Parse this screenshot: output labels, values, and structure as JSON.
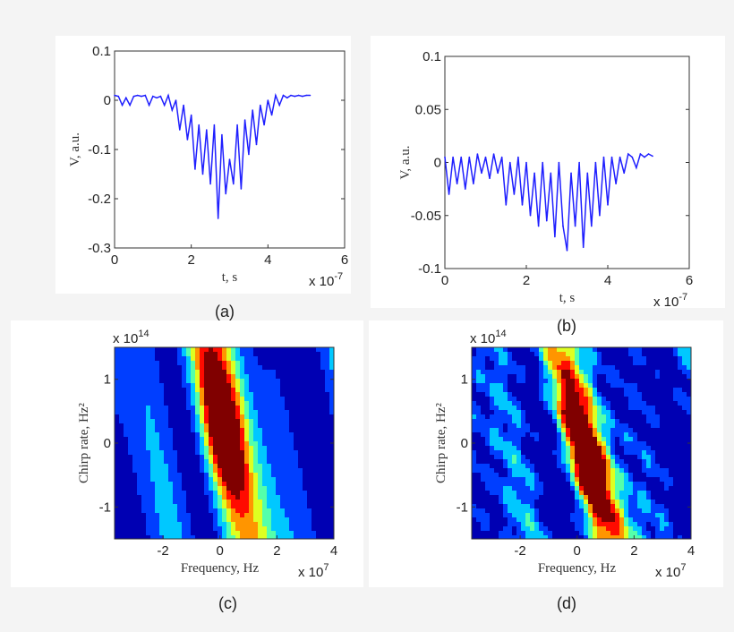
{
  "chart_data": [
    {
      "id": "a",
      "type": "line",
      "caption": "(a)",
      "xlabel": "t, s",
      "ylabel": "V, a.u.",
      "x_multiplier": "x 10-7",
      "xlim": [
        0,
        6
      ],
      "ylim": [
        -0.3,
        0.1
      ],
      "xticks": [
        "0",
        "2",
        "4",
        "6"
      ],
      "yticks": [
        "0.1",
        "0",
        "-0.1",
        "-0.2",
        "-0.3"
      ],
      "color": "#1f1fff",
      "x": [
        0,
        0.1,
        0.2,
        0.3,
        0.4,
        0.5,
        0.6,
        0.7,
        0.8,
        0.9,
        1.0,
        1.1,
        1.2,
        1.3,
        1.4,
        1.5,
        1.6,
        1.7,
        1.8,
        1.9,
        2.0,
        2.1,
        2.2,
        2.3,
        2.4,
        2.5,
        2.6,
        2.7,
        2.8,
        2.9,
        3.0,
        3.1,
        3.2,
        3.3,
        3.4,
        3.5,
        3.6,
        3.7,
        3.8,
        3.9,
        4.0,
        4.1,
        4.2,
        4.3,
        4.4,
        4.5,
        4.6,
        4.7,
        4.8,
        4.9,
        5.0,
        5.1
      ],
      "y": [
        0.01,
        0.008,
        -0.01,
        0.005,
        -0.01,
        0.008,
        0.01,
        0.008,
        0.01,
        -0.01,
        0.008,
        0.005,
        0.008,
        -0.01,
        0.01,
        -0.02,
        0,
        -0.06,
        -0.01,
        -0.08,
        -0.03,
        -0.14,
        -0.05,
        -0.15,
        -0.06,
        -0.17,
        -0.05,
        -0.24,
        -0.07,
        -0.19,
        -0.12,
        -0.17,
        -0.05,
        -0.18,
        -0.04,
        -0.11,
        -0.02,
        -0.09,
        -0.01,
        -0.05,
        0,
        -0.03,
        0.01,
        -0.01,
        0.01,
        0.005,
        0.01,
        0.008,
        0.01,
        0.008,
        0.01,
        0.01
      ]
    },
    {
      "id": "b",
      "type": "line",
      "caption": "(b)",
      "xlabel": "t, s",
      "ylabel": "V, a.u.",
      "x_multiplier": "x 10-7",
      "xlim": [
        0,
        6
      ],
      "ylim": [
        -0.1,
        0.1
      ],
      "xticks": [
        "0",
        "2",
        "4",
        "6"
      ],
      "yticks": [
        "0.1",
        "0.05",
        "0",
        "-0.05",
        "-0.1"
      ],
      "color": "#1f1fff",
      "x": [
        0,
        0.1,
        0.2,
        0.3,
        0.4,
        0.5,
        0.6,
        0.7,
        0.8,
        0.9,
        1.0,
        1.1,
        1.2,
        1.3,
        1.4,
        1.5,
        1.6,
        1.7,
        1.8,
        1.9,
        2.0,
        2.1,
        2.2,
        2.3,
        2.4,
        2.5,
        2.6,
        2.7,
        2.8,
        2.9,
        3.0,
        3.1,
        3.2,
        3.3,
        3.4,
        3.5,
        3.6,
        3.7,
        3.8,
        3.9,
        4.0,
        4.1,
        4.2,
        4.3,
        4.4,
        4.5,
        4.6,
        4.7,
        4.8,
        4.9,
        5.0,
        5.1
      ],
      "y": [
        0.005,
        -0.03,
        0.005,
        -0.02,
        0.005,
        -0.025,
        0.005,
        -0.02,
        0.008,
        -0.01,
        0.005,
        -0.015,
        0.008,
        -0.01,
        0.005,
        -0.04,
        0,
        -0.03,
        0.005,
        -0.04,
        0,
        -0.05,
        -0.01,
        -0.06,
        0,
        -0.055,
        -0.01,
        -0.07,
        0,
        -0.06,
        -0.083,
        -0.01,
        -0.06,
        0,
        -0.08,
        -0.01,
        -0.06,
        0,
        -0.05,
        0.005,
        -0.04,
        0.005,
        -0.02,
        0.005,
        -0.01,
        0.008,
        0.005,
        -0.005,
        0.008,
        0.005,
        0.008,
        0.006
      ]
    },
    {
      "id": "c",
      "type": "heatmap",
      "caption": "(c)",
      "xlabel": "Frequency, Hz",
      "ylabel": "Chirp rate, Hz²",
      "x_multiplier": "x 107",
      "y_multiplier": "x 1014",
      "xlim": [
        -3.7,
        4
      ],
      "ylim": [
        -1.5,
        1.5
      ],
      "xticks": [
        "-2",
        "0",
        "2",
        "4"
      ],
      "yticks": [
        "1",
        "0",
        "-1"
      ],
      "colormap": "jet",
      "levels": 8,
      "ridge": {
        "top_frequency": -0.5,
        "bottom_frequency": 1.0
      },
      "peak": {
        "frequency": 0,
        "chirp_rate": 0.2
      }
    },
    {
      "id": "d",
      "type": "heatmap",
      "caption": "(d)",
      "xlabel": "Frequency, Hz",
      "ylabel": "Chirp rate, Hz²",
      "x_multiplier": "x 107",
      "y_multiplier": "x 1014",
      "xlim": [
        -3.7,
        4
      ],
      "ylim": [
        -1.5,
        1.5
      ],
      "xticks": [
        "-2",
        "0",
        "2",
        "4"
      ],
      "yticks": [
        "1",
        "0",
        "-1"
      ],
      "colormap": "jet",
      "levels": 8,
      "ridge": {
        "top_frequency": -0.9,
        "bottom_frequency": 1.3
      },
      "peak": {
        "frequency": 0.2,
        "chirp_rate": -0.3
      }
    }
  ]
}
